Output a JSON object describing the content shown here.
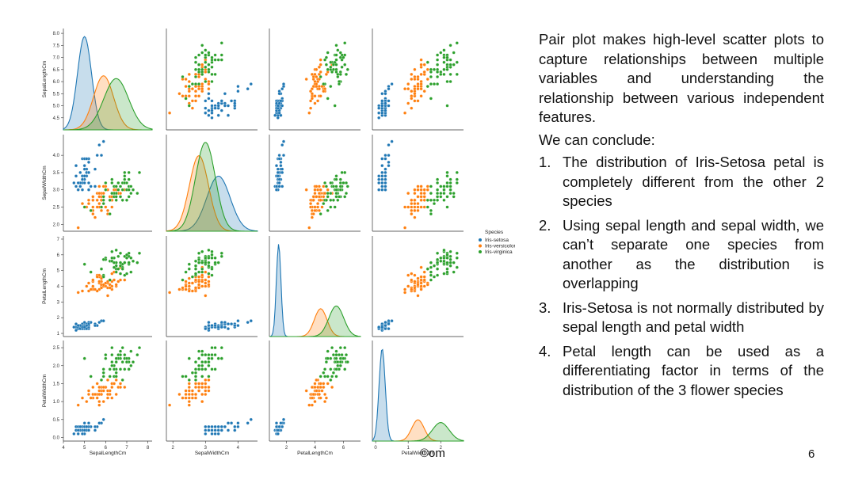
{
  "slide": {
    "paragraph": "Pair plot makes high-level scatter plots to capture relationships between multiple variables and understanding the relationship between various independent features.",
    "conclude_label": "We can conclude:",
    "points": [
      {
        "num": "1.",
        "text": "The distribution of Iris-Setosa petal is completely different from the other 2 species"
      },
      {
        "num": "2.",
        "text": "Using sepal length and sepal width, we can’t separate one species from another as the distribution is overlapping"
      },
      {
        "num": "3.",
        "text": "Iris-Setosa is not normally distributed by sepal length and petal width"
      },
      {
        "num": "4.",
        "text": "Petal length can be used as a differentiating factor in terms of the distribution of the 3 flower species"
      }
    ],
    "page_number": "6",
    "watermark": "©om"
  },
  "chart_data": {
    "type": "scatter",
    "subtype": "pairplot",
    "variables": [
      "SepalLengthCm",
      "SepalWidthCm",
      "PetalLengthCm",
      "PetalWidthCm"
    ],
    "var_ranges": [
      [
        4,
        8.2
      ],
      [
        1.8,
        4.6
      ],
      [
        0.8,
        7.2
      ],
      [
        -0.1,
        2.7
      ]
    ],
    "x_ticks": [
      [
        4,
        5,
        6,
        7,
        8
      ],
      [
        2,
        3,
        4
      ],
      [
        2,
        4,
        6,
        8
      ],
      [
        0,
        1,
        2,
        3
      ]
    ],
    "y_ticks": [
      [
        "4.5",
        "5.0",
        "5.5",
        "6.0",
        "6.5",
        "7.0",
        "7.5",
        "8.0"
      ],
      [
        "2.0",
        "2.5",
        "3.0",
        "3.5",
        "4.0"
      ],
      [
        "1",
        "2",
        "3",
        "4",
        "5",
        "6",
        "7"
      ],
      [
        "0.0",
        "0.5",
        "1.0",
        "1.5",
        "2.0",
        "2.5"
      ]
    ],
    "legend": {
      "title": "Species",
      "entries": [
        "Iris-setosa",
        "Iris-versicolor",
        "Iris-virginica"
      ],
      "position": "right"
    },
    "series": [
      {
        "name": "Iris-setosa",
        "color": "#1f77b4",
        "means": [
          5.0,
          3.4,
          1.46,
          0.24
        ],
        "sds": [
          0.35,
          0.38,
          0.17,
          0.1
        ],
        "density": {
          "SepalLengthCm": {
            "peak": 5.0,
            "max": 1.0
          },
          "SepalWidthCm": {
            "peak": 3.4,
            "max": 0.62
          },
          "PetalLengthCm": {
            "peak": 1.45,
            "max": 1.0
          },
          "PetalWidthCm": {
            "peak": 0.2,
            "max": 1.0
          }
        }
      },
      {
        "name": "Iris-versicolor",
        "color": "#ff7f0e",
        "means": [
          5.94,
          2.77,
          4.26,
          1.33
        ],
        "sds": [
          0.5,
          0.31,
          0.47,
          0.2
        ],
        "density": {
          "SepalLengthCm": {
            "peak": 5.9,
            "max": 0.58
          },
          "SepalWidthCm": {
            "peak": 2.8,
            "max": 0.85
          },
          "PetalLengthCm": {
            "peak": 4.4,
            "max": 0.3
          },
          "PetalWidthCm": {
            "peak": 1.3,
            "max": 0.23
          }
        }
      },
      {
        "name": "Iris-virginica",
        "color": "#2ca02c",
        "means": [
          6.59,
          2.97,
          5.55,
          2.03
        ],
        "sds": [
          0.62,
          0.32,
          0.55,
          0.27
        ],
        "density": {
          "SepalLengthCm": {
            "peak": 6.5,
            "max": 0.55
          },
          "SepalWidthCm": {
            "peak": 3.0,
            "max": 1.0
          },
          "PetalLengthCm": {
            "peak": 5.5,
            "max": 0.33
          },
          "PetalWidthCm": {
            "peak": 2.0,
            "max": 0.2
          }
        }
      }
    ]
  }
}
